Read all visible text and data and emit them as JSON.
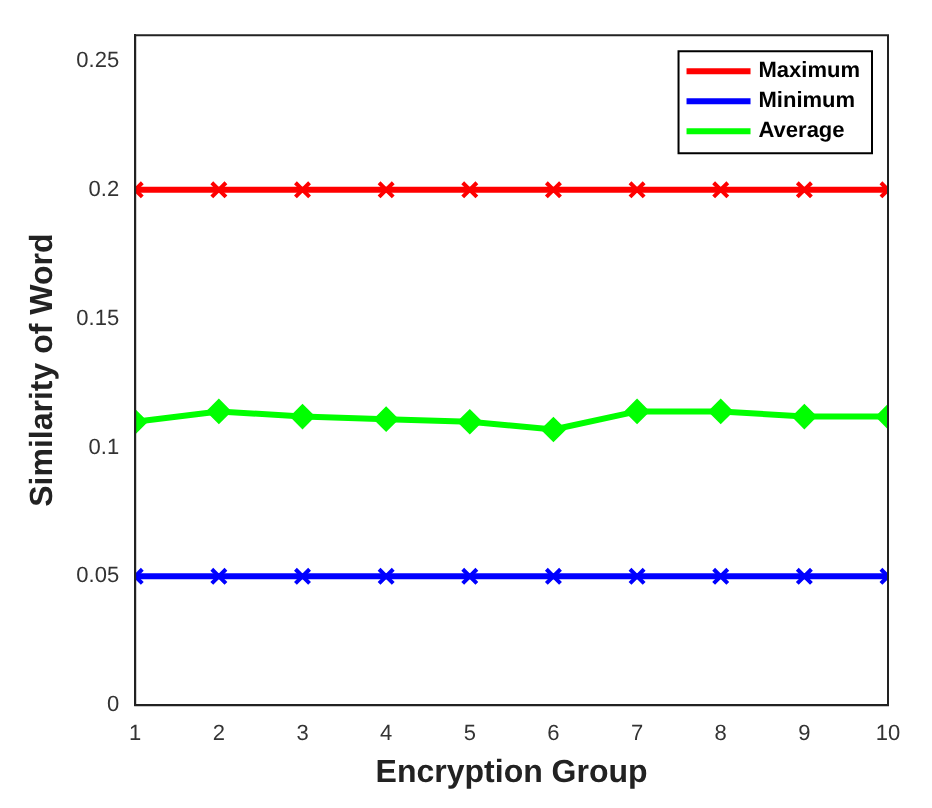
{
  "chart_data": {
    "type": "line",
    "xlabel": "Encryption Group",
    "ylabel": "Similarity of Word",
    "x": [
      1,
      2,
      3,
      4,
      5,
      6,
      7,
      8,
      9,
      10
    ],
    "series": [
      {
        "name": "Maximum",
        "color": "#ff0000",
        "marker": "cross",
        "values": [
          0.2,
          0.2,
          0.2,
          0.2,
          0.2,
          0.2,
          0.2,
          0.2,
          0.2,
          0.2
        ]
      },
      {
        "name": "Minimum",
        "color": "#0000ff",
        "marker": "cross",
        "values": [
          0.05,
          0.05,
          0.05,
          0.05,
          0.05,
          0.05,
          0.05,
          0.05,
          0.05,
          0.05
        ]
      },
      {
        "name": "Average",
        "color": "#00ff00",
        "marker": "diamond",
        "values": [
          0.11,
          0.114,
          0.112,
          0.111,
          0.11,
          0.107,
          0.114,
          0.114,
          0.112,
          0.112
        ]
      }
    ],
    "xlim": [
      1,
      10
    ],
    "xticks": [
      1,
      2,
      3,
      4,
      5,
      6,
      7,
      8,
      9,
      10
    ],
    "ylim": [
      0,
      0.26
    ],
    "yticks": [
      0,
      0.05,
      0.1,
      0.15,
      0.2,
      0.25
    ],
    "grid": false,
    "legend": "top right",
    "line_style": "solid"
  }
}
